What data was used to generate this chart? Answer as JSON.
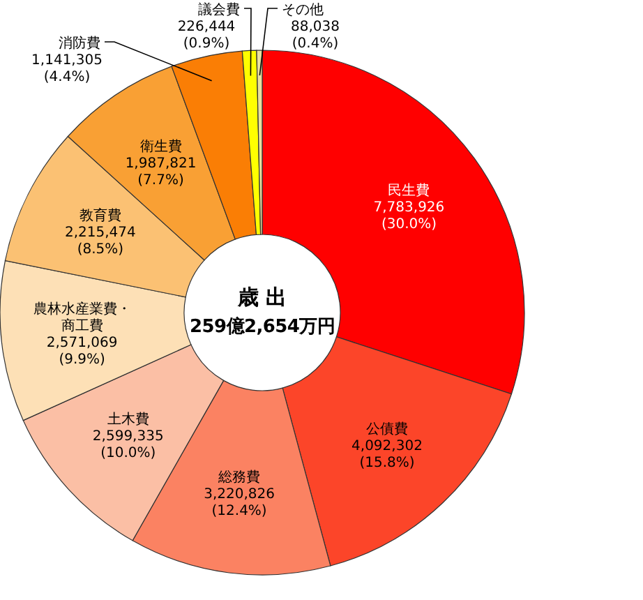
{
  "chart_data": {
    "type": "donut",
    "title": "歳 出",
    "subtitle": "259億2,654万円",
    "categories": [
      "民生費",
      "公債費",
      "総務費",
      "土木費",
      "農林水産業費・商工費",
      "教育費",
      "衛生費",
      "消防費",
      "議会費",
      "その他"
    ],
    "values": [
      7783926,
      4092302,
      3220826,
      2599335,
      2571069,
      2215474,
      1987821,
      1141305,
      226444,
      88038
    ],
    "value_labels": [
      "7,783,926 (30.0%)",
      "4,092,302 (15.8%)",
      "3,220,826 (12.4%)",
      "2,599,335 (10.0%)",
      "2,571,069 (9.9%)",
      "2,215,474 (8.5%)",
      "1,987,821 (7.7%)",
      "1,141,305 (4.4%)",
      "226,444 (0.9%)",
      "88,038 (0.4%)"
    ],
    "colors": [
      "#ff0000",
      "#fc4529",
      "#fb8262",
      "#fbbfa5",
      "#fde0b6",
      "#fbc173",
      "#f9a034",
      "#fa7e05",
      "#ffff00",
      "#e8dfa0"
    ]
  }
}
